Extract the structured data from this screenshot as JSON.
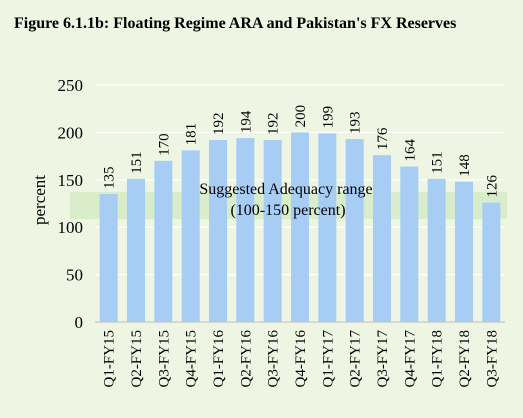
{
  "figure": {
    "title": "Figure 6.1.1b: Floating Regime ARA and Pakistan's FX Reserves"
  },
  "chart_data": {
    "type": "bar",
    "title": "Figure 6.1.1b: Floating Regime ARA and Pakistan's FX Reserves",
    "xlabel": "",
    "ylabel": "percent",
    "ylim": [
      0,
      250
    ],
    "yticks": [
      0,
      50,
      100,
      150,
      200,
      250
    ],
    "grid": true,
    "categories": [
      "Q1-FY15",
      "Q2-FY15",
      "Q3-FY15",
      "Q4-FY15",
      "Q1-FY16",
      "Q2-FY16",
      "Q3-FY16",
      "Q4-FY16",
      "Q1-FY17",
      "Q2-FY17",
      "Q3-FY17",
      "Q4-FY17",
      "Q1-FY18",
      "Q2-FY18",
      "Q3-FY18"
    ],
    "values": [
      135,
      151,
      170,
      181,
      192,
      194,
      192,
      200,
      199,
      193,
      176,
      164,
      151,
      148,
      126
    ],
    "bar_color": "#a7cdf5",
    "band": {
      "range": [
        100,
        150
      ],
      "label_line1": "Suggested Adequacy range",
      "label_line2": "(100-150 percent)",
      "color": "#d5ebc7"
    }
  }
}
